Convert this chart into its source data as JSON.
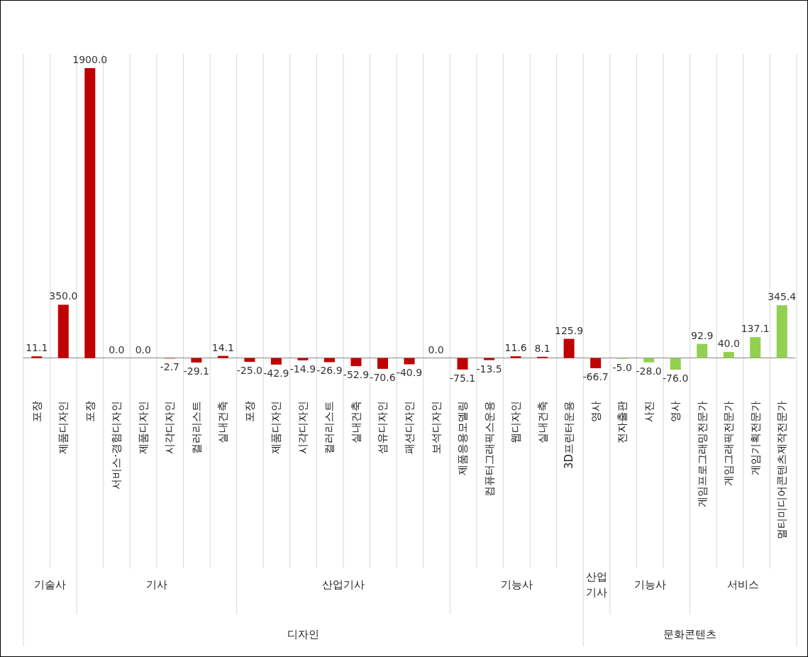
{
  "chart_data": {
    "type": "bar",
    "categories": [
      "포장",
      "제품디자인",
      "포장",
      "서비스·경험디자인",
      "제품디자인",
      "시각디자인",
      "컬러리스트",
      "실내건축",
      "포장",
      "제품디자인",
      "시각디자인",
      "컬러리스트",
      "실내건축",
      "섬유디자인",
      "패션디자인",
      "보석디자인",
      "제품응용모델링",
      "컴퓨터그래픽스운용",
      "웹디자인",
      "실내건축",
      "3D프린터운용",
      "영사",
      "전자출판",
      "사진",
      "영사",
      "게임프로그래밍전문가",
      "게임그래픽전문가",
      "게임기획전문가",
      "멀티미디어콘텐츠제작전문가"
    ],
    "values": [
      11.1,
      350.0,
      1900.0,
      0.0,
      0.0,
      -2.7,
      -29.1,
      14.1,
      -25.0,
      -42.9,
      -14.9,
      -26.9,
      -52.9,
      -70.6,
      -40.9,
      0.0,
      -75.1,
      -13.5,
      11.6,
      8.1,
      125.9,
      -66.7,
      -5.0,
      -28.0,
      -76.0,
      92.9,
      40.0,
      137.1,
      345.4
    ],
    "value_labels": [
      "11.1",
      "350.0",
      "1900.0",
      "0.0",
      "0.0",
      "-2.7",
      "-29.1",
      "14.1",
      "-25.0",
      "-42.9",
      "-14.9",
      "-26.9",
      "-52.9",
      "-70.6",
      "-40.9",
      "0.0",
      "-75.1",
      "-13.5",
      "11.6",
      "8.1",
      "125.9",
      "-66.7",
      "-5.0",
      "-28.0",
      "-76.0",
      "92.9",
      "40.0",
      "137.1",
      "345.4"
    ],
    "colors": [
      "#c00000",
      "#c00000",
      "#c00000",
      "#c00000",
      "#c00000",
      "#c00000",
      "#c00000",
      "#c00000",
      "#c00000",
      "#c00000",
      "#c00000",
      "#c00000",
      "#c00000",
      "#c00000",
      "#c00000",
      "#c00000",
      "#c00000",
      "#c00000",
      "#c00000",
      "#c00000",
      "#c00000",
      "#c00000",
      "#92d050",
      "#92d050",
      "#92d050",
      "#92d050",
      "#92d050",
      "#92d050",
      "#92d050"
    ],
    "annotations": [
      "기술사",
      "기사",
      "산업기사",
      "기능사",
      "산업기사",
      "기능사",
      "서비스",
      "디자인",
      "문화콘텐츠"
    ],
    "grid": "x"
  }
}
